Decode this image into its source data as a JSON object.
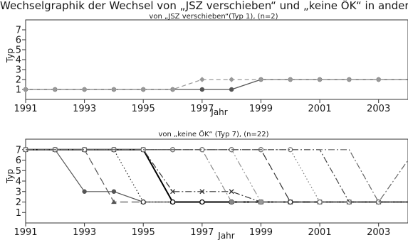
{
  "header_fragment": "Wechselgraphik der Wechsel von „JSZ verschieben“ und „keine ÖK“ in andere Wochenarbeitszeittypen (",
  "chart_data": [
    {
      "type": "line",
      "title": "von „JSZ verschieben“(Typ 1), (n=2)",
      "xlabel": "Jahr",
      "ylabel": "Typ",
      "xlim": [
        1991,
        2004
      ],
      "ylim": [
        0,
        8
      ],
      "xticks": [
        "1991",
        "1993",
        "1995",
        "1997",
        "1999",
        "2001",
        "2003"
      ],
      "yticks": [
        "1",
        "2",
        "3",
        "4",
        "5",
        "6",
        "7"
      ],
      "grid": false,
      "x": [
        1991,
        1992,
        1993,
        1994,
        1995,
        1996,
        1997,
        1998,
        1999,
        2000,
        2001,
        2002,
        2003,
        2004
      ],
      "series": [
        {
          "marker": "dot",
          "color": "#555555",
          "dash": "solid",
          "values": [
            1,
            1,
            1,
            1,
            1,
            1,
            1,
            1,
            2,
            2,
            2,
            2,
            2,
            2
          ]
        },
        {
          "marker": "diamond",
          "color": "#999999",
          "dash": "dashed",
          "values": [
            1,
            1,
            1,
            1,
            1,
            1,
            2,
            2,
            2,
            2,
            2,
            2,
            2,
            2
          ]
        }
      ]
    },
    {
      "type": "line",
      "title": "von „keine ÖK“ (Typ 7), (n=22)",
      "xlabel": "Jahr",
      "ylabel": "Typ",
      "xlim": [
        1991,
        2004
      ],
      "ylim": [
        0,
        8
      ],
      "xticks": [
        "1991",
        "1993",
        "1995",
        "1997",
        "1999",
        "2001",
        "2003"
      ],
      "yticks": [
        "1",
        "2",
        "3",
        "4",
        "5",
        "6",
        "7"
      ],
      "grid": false,
      "x": [
        1991,
        1992,
        1993,
        1994,
        1995,
        1996,
        1997,
        1998,
        1999,
        2000,
        2001,
        2002,
        2003,
        2004
      ],
      "series": [
        {
          "marker": "dot",
          "color": "#555555",
          "dash": "solid",
          "values": [
            7,
            7,
            3,
            3,
            2,
            2,
            2,
            2,
            2,
            2,
            2,
            2,
            2,
            2
          ]
        },
        {
          "marker": "triangle",
          "color": "#555555",
          "dash": "longdash",
          "values": [
            7,
            7,
            7,
            2,
            2,
            2,
            2,
            2,
            2,
            2,
            2,
            2,
            2,
            2
          ]
        },
        {
          "marker": "ring",
          "color": "#222222",
          "dash": "dotted",
          "values": [
            7,
            7,
            7,
            7,
            2,
            2,
            2,
            2,
            2,
            2,
            2,
            2,
            2,
            2
          ]
        },
        {
          "marker": "ring",
          "color": "#000000",
          "dash": "solid",
          "width": 2,
          "values": [
            7,
            7,
            7,
            7,
            7,
            2,
            2,
            2,
            2,
            2,
            2,
            2,
            2,
            2
          ]
        },
        {
          "marker": "cross",
          "color": "#333333",
          "dash": "dashdot",
          "values": [
            7,
            7,
            7,
            7,
            7,
            3,
            3,
            3,
            2,
            2,
            2,
            2,
            2,
            2
          ]
        },
        {
          "marker": "dot",
          "color": "#888888",
          "dash": "dashdot",
          "values": [
            7,
            7,
            7,
            7,
            7,
            7,
            7,
            2,
            2,
            2,
            2,
            2,
            2,
            2
          ]
        },
        {
          "marker": "dot",
          "color": "#999999",
          "dash": "dashdotdot",
          "values": [
            7,
            7,
            7,
            7,
            7,
            7,
            7,
            7,
            2,
            2,
            2,
            2,
            2,
            2
          ]
        },
        {
          "marker": "ring",
          "color": "#333333",
          "dash": "longdash",
          "values": [
            7,
            7,
            7,
            7,
            7,
            7,
            7,
            7,
            7,
            2,
            2,
            2,
            2,
            2
          ]
        },
        {
          "marker": "ring",
          "color": "#777777",
          "dash": "dotted",
          "values": [
            7,
            7,
            7,
            7,
            7,
            7,
            7,
            7,
            7,
            7,
            2,
            2,
            2,
            2
          ]
        },
        {
          "marker": "none",
          "color": "#444444",
          "dash": "dashdot",
          "values": [
            7,
            7,
            7,
            7,
            7,
            7,
            7,
            7,
            7,
            7,
            7,
            2,
            2,
            2
          ]
        },
        {
          "marker": "none",
          "color": "#666666",
          "dash": "dashdot",
          "values": [
            7,
            7,
            7,
            7,
            7,
            7,
            7,
            7,
            7,
            7,
            7,
            7,
            2,
            6
          ]
        }
      ]
    }
  ]
}
